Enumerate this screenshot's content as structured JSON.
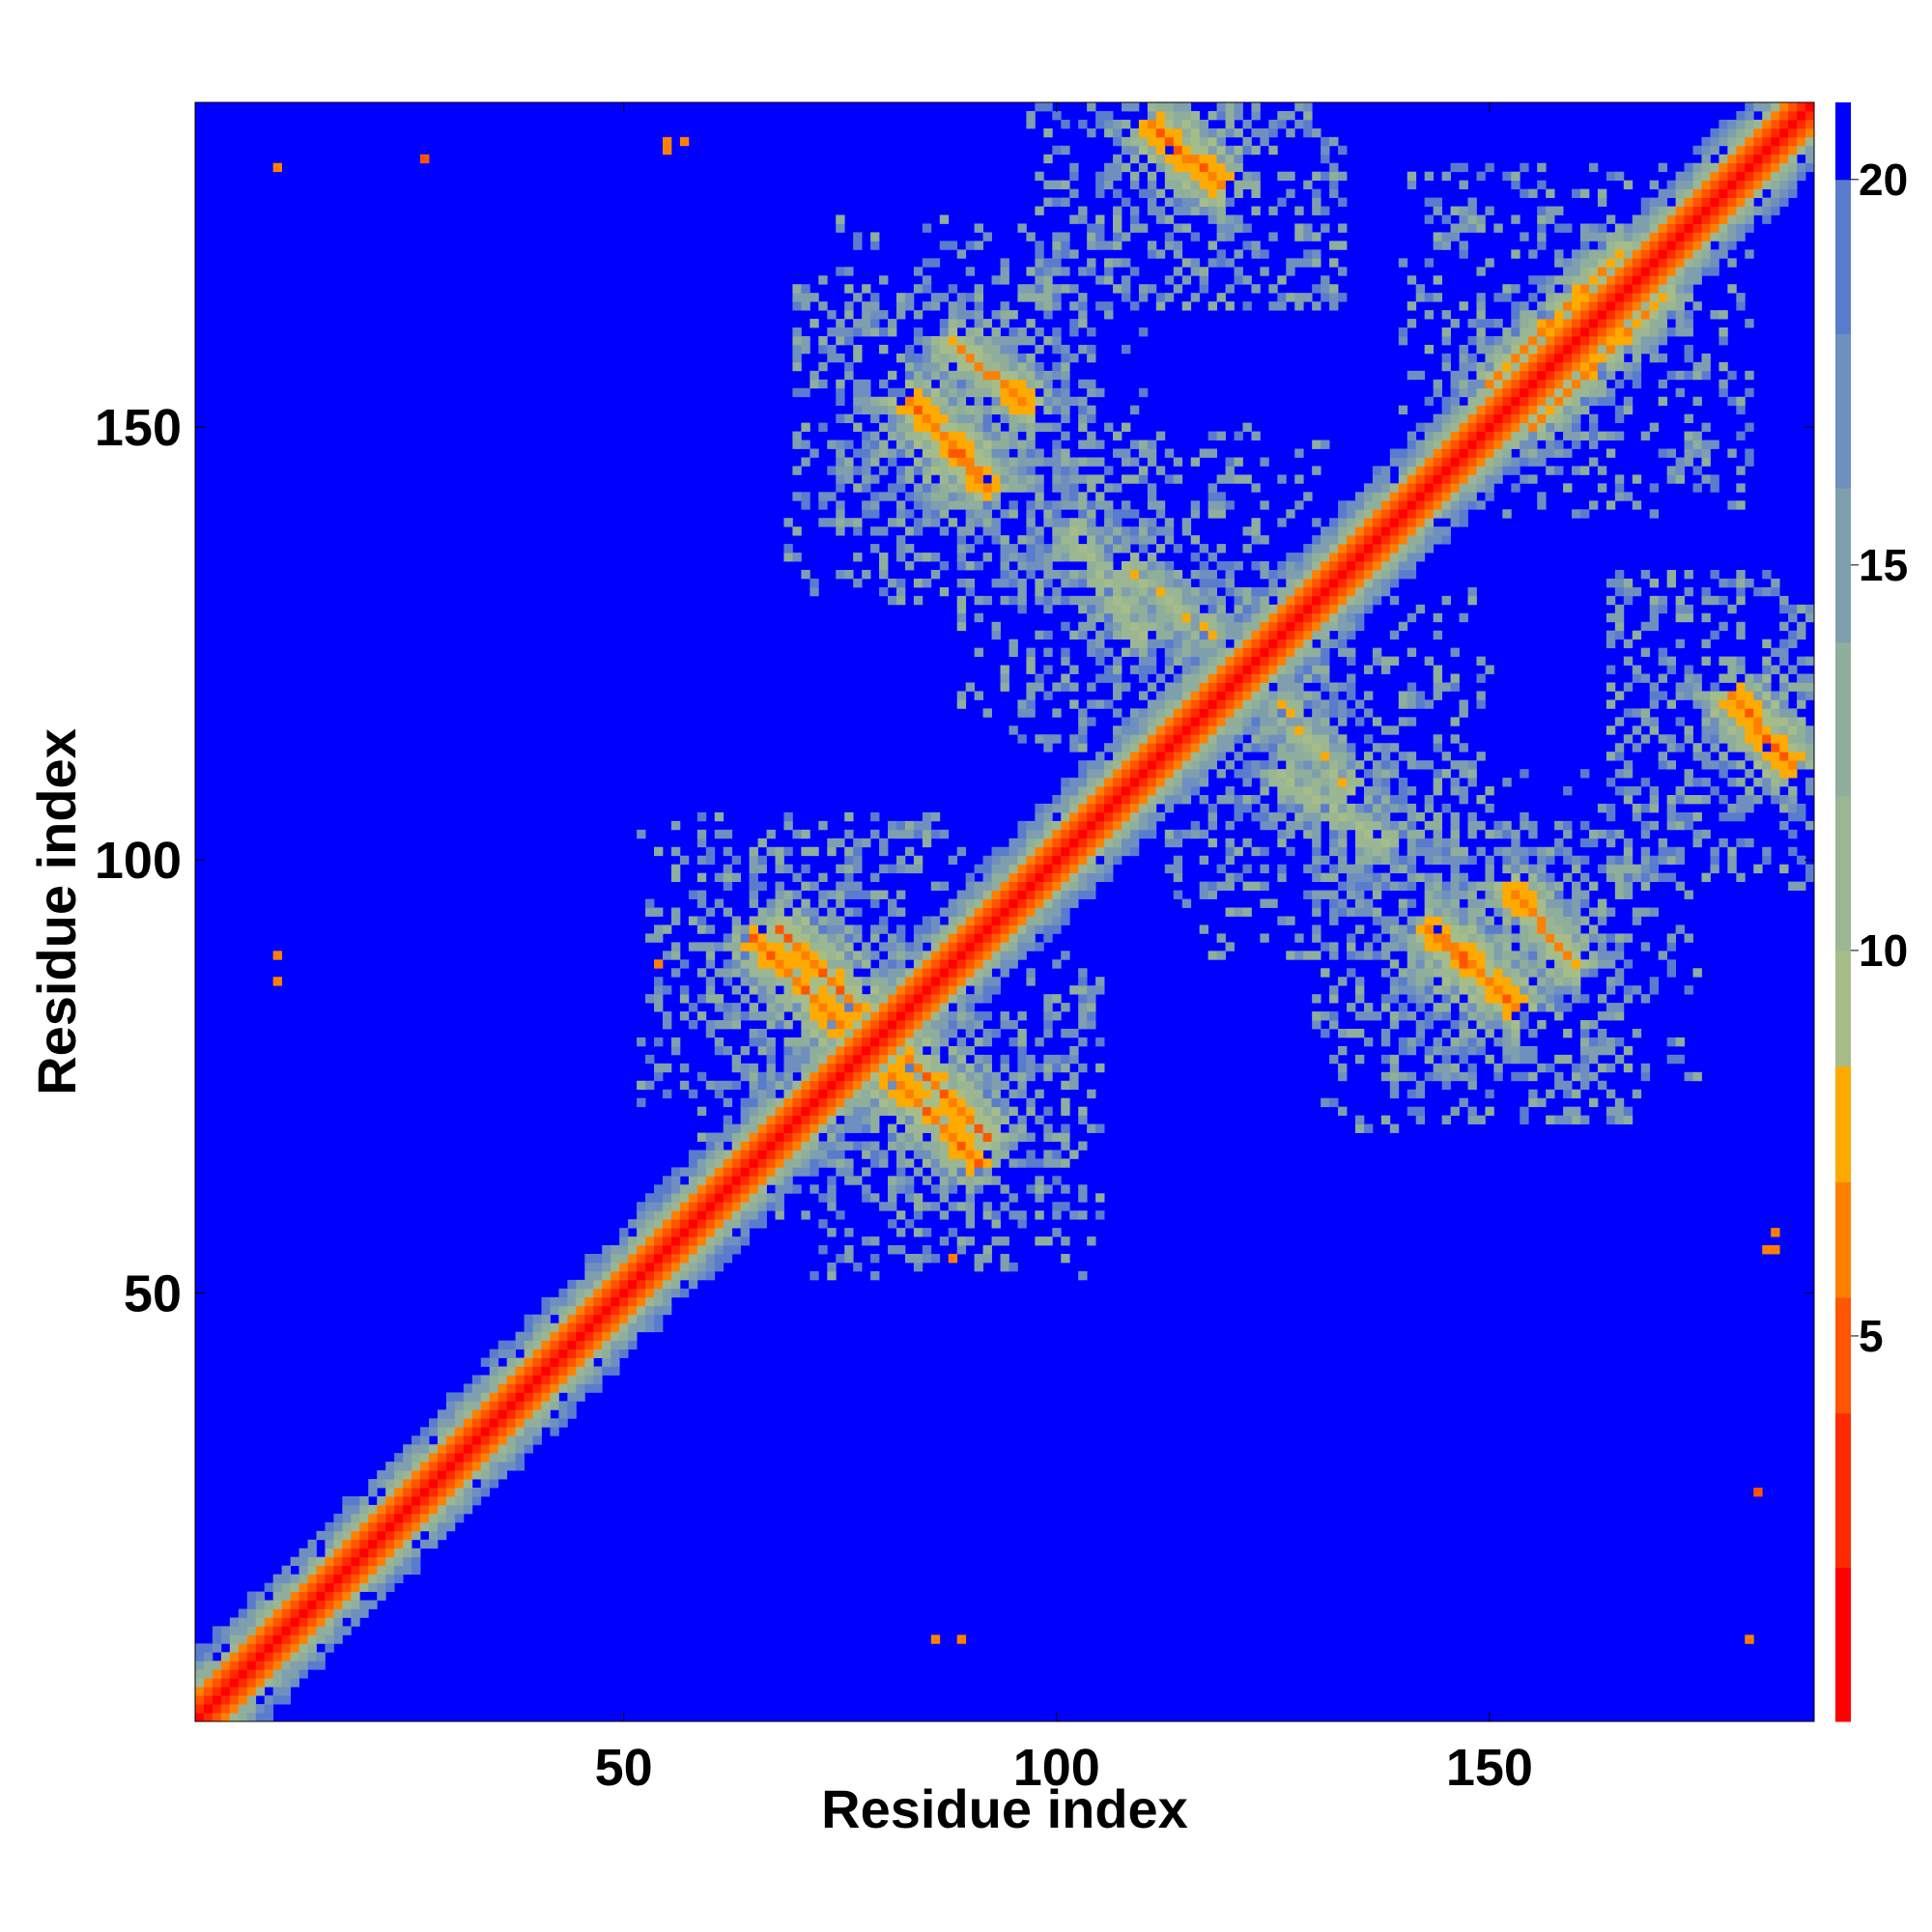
{
  "chart_data": {
    "type": "heatmap",
    "description_kind": "residue contact / distance map (symmetric)",
    "title": "",
    "xlabel": "Residue index",
    "ylabel": "Residue index",
    "n_residues": 187,
    "xlim": [
      1,
      187
    ],
    "ylim": [
      1,
      187
    ],
    "xticks": [
      50,
      100,
      150
    ],
    "yticks": [
      50,
      100,
      150
    ],
    "colorbar": {
      "ticks": [
        5,
        10,
        15,
        20
      ],
      "range": [
        0,
        21
      ],
      "colors": {
        "very_close": "#ff0000",
        "close": "#ff6a00",
        "near": "#ffa500",
        "mid": "#a8c08c",
        "mid_far": "#8fb0a0",
        "far": "#6688bb",
        "background": "#0000ff"
      }
    },
    "diagonal_distance": 1,
    "background_distance": 21,
    "contact_bands": [
      {
        "type": "antiparallel",
        "i_range": [
          65,
          75
        ],
        "j_range": [
          81,
          91
        ],
        "min_distance": 5
      },
      {
        "type": "antiparallel",
        "i_range": [
          83,
          92
        ],
        "j_range": [
          68,
          77
        ],
        "min_distance": 5
      },
      {
        "type": "antiparallel",
        "i_range": [
          83,
          92
        ],
        "j_range": [
          143,
          153
        ],
        "min_distance": 5
      },
      {
        "type": "antiparallel",
        "i_range": [
          145,
          153
        ],
        "j_range": [
          83,
          91
        ],
        "min_distance": 5
      },
      {
        "type": "antiparallel",
        "i_range": [
          111,
          119
        ],
        "j_range": [
          178,
          185
        ],
        "min_distance": 5
      },
      {
        "type": "antiparallel",
        "i_range": [
          178,
          185
        ],
        "j_range": [
          111,
          119
        ],
        "min_distance": 5
      },
      {
        "type": "antiparallel",
        "i_range": [
          88,
          97
        ],
        "j_range": [
          152,
          160
        ],
        "min_distance": 6
      },
      {
        "type": "antiparallel",
        "i_range": [
          102,
          110
        ],
        "j_range": [
          126,
          138
        ],
        "min_distance": 8
      },
      {
        "type": "antiparallel",
        "i_range": [
          126,
          134
        ],
        "j_range": [
          108,
          118
        ],
        "min_distance": 8
      },
      {
        "type": "parallel",
        "i_range": [
          150,
          165
        ],
        "j_range": [
          155,
          170
        ],
        "min_distance": 6
      }
    ],
    "isolated_contacts": [
      {
        "i": 10,
        "j": 180,
        "distance": 6
      },
      {
        "i": 10,
        "j": 89,
        "distance": 6
      },
      {
        "i": 55,
        "j": 182,
        "distance": 6
      },
      {
        "i": 57,
        "j": 183,
        "distance": 6
      },
      {
        "i": 183,
        "j": 55,
        "distance": 6
      },
      {
        "i": 181,
        "j": 27,
        "distance": 5
      },
      {
        "i": 86,
        "j": 10,
        "distance": 6
      },
      {
        "i": 88,
        "j": 54,
        "distance": 6
      }
    ]
  }
}
